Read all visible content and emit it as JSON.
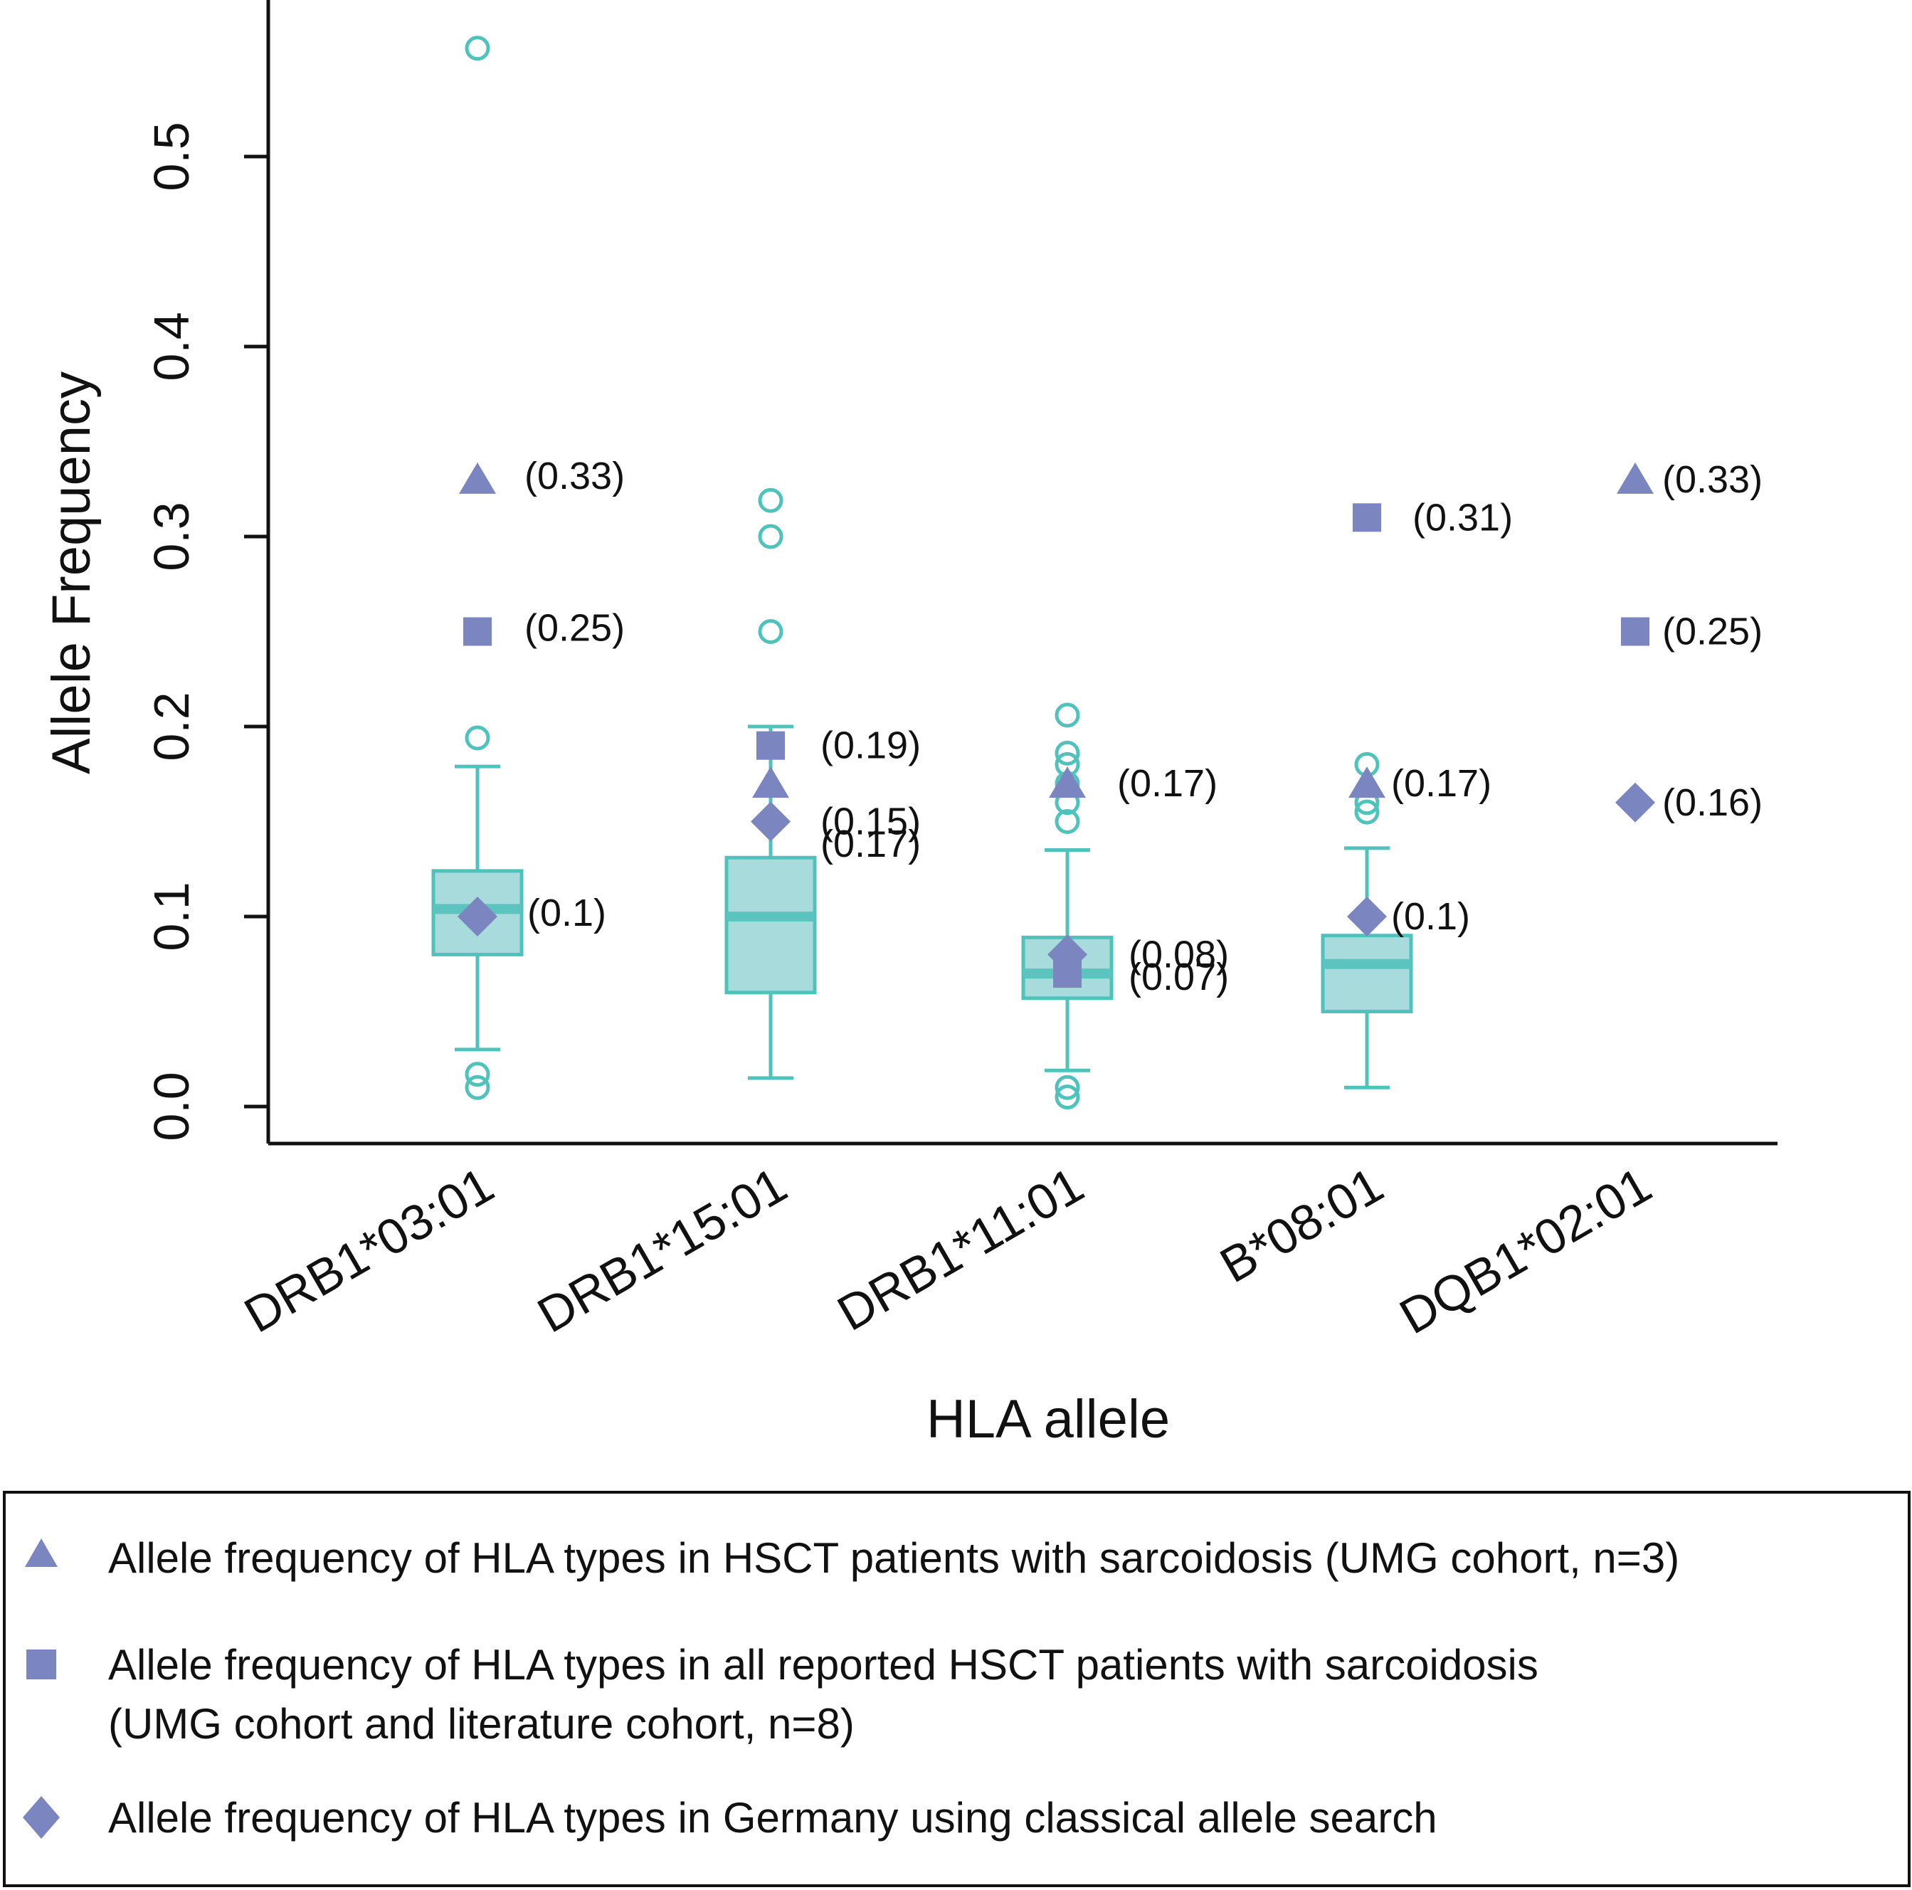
{
  "chart_data": {
    "type": "boxplot",
    "xlabel": "HLA allele",
    "ylabel": "Allele Frequency",
    "ylim": [
      0.0,
      0.6
    ],
    "yticks": [
      0.0,
      0.1,
      0.2,
      0.3,
      0.4,
      0.5
    ],
    "ytick_labels": [
      "0.0",
      "0.1",
      "0.2",
      "0.3",
      "0.4",
      "0.5"
    ],
    "categories": [
      "DRB1*03:01",
      "DRB1*15:01",
      "DRB1*11:01",
      "B*08:01",
      "DQB1*02:01"
    ],
    "boxes": [
      {
        "category": "DRB1*03:01",
        "whisker_low": 0.03,
        "q1": 0.08,
        "median": 0.104,
        "q3": 0.124,
        "whisker_high": 0.179,
        "outliers": [
          0.01,
          0.017,
          0.194,
          0.557
        ]
      },
      {
        "category": "DRB1*15:01",
        "whisker_low": 0.015,
        "q1": 0.06,
        "median": 0.1,
        "q3": 0.131,
        "whisker_high": 0.2,
        "outliers": [
          0.25,
          0.3,
          0.319
        ]
      },
      {
        "category": "DRB1*11:01",
        "whisker_low": 0.019,
        "q1": 0.057,
        "median": 0.07,
        "q3": 0.089,
        "whisker_high": 0.135,
        "outliers": [
          0.005,
          0.01,
          0.15,
          0.16,
          0.17,
          0.18,
          0.186,
          0.206
        ]
      },
      {
        "category": "B*08:01",
        "whisker_low": 0.01,
        "q1": 0.05,
        "median": 0.075,
        "q3": 0.09,
        "whisker_high": 0.136,
        "outliers": [
          0.155,
          0.16,
          0.18
        ]
      },
      {
        "category": "DQB1*02:01",
        "whisker_low": null,
        "q1": null,
        "median": null,
        "q3": null,
        "whisker_high": null,
        "outliers": []
      }
    ],
    "series": [
      {
        "name": "Allele frequency of HLA types in HSCT patients with sarcoidosis (UMG cohort, n=3)",
        "marker": "triangle",
        "values": [
          0.33,
          0.17,
          0.17,
          0.17,
          0.33
        ],
        "labels": [
          "(0.33)",
          "(0.17)",
          "(0.17)",
          "(0.17)",
          "(0.33)"
        ]
      },
      {
        "name_lines": [
          "Allele frequency of HLA types in all reported HSCT patients with sarcoidosis",
          "(UMG cohort and literature cohort, n=8)"
        ],
        "marker": "square",
        "values": [
          0.25,
          0.19,
          0.07,
          0.31,
          0.25
        ],
        "labels": [
          "(0.25)",
          "(0.19)",
          "(0.07)",
          "(0.31)",
          "(0.25)"
        ]
      },
      {
        "name": "Allele frequency of HLA types in Germany using classical allele search",
        "marker": "diamond",
        "values": [
          0.1,
          0.15,
          0.08,
          0.1,
          0.16
        ],
        "labels": [
          "(0.1)",
          "(0.15)",
          "(0.08)",
          "(0.1)",
          "(0.16)"
        ]
      }
    ],
    "colors": {
      "box_fill": "#a8dcdc",
      "box_stroke": "#4fc2bc",
      "median": "#5cc4be",
      "outlier": "#4fc2bc",
      "marker": "#7b86c0",
      "axis": "#111111",
      "text": "#111111"
    }
  }
}
